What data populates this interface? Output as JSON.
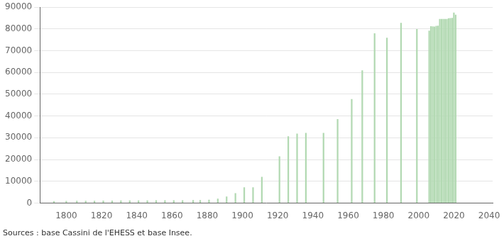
{
  "chart_data": {
    "type": "bar",
    "x": [
      1793,
      1800,
      1806,
      1811,
      1816,
      1821,
      1826,
      1831,
      1836,
      1841,
      1846,
      1851,
      1856,
      1861,
      1866,
      1872,
      1876,
      1881,
      1886,
      1891,
      1896,
      1901,
      1906,
      1911,
      1921,
      1926,
      1931,
      1936,
      1946,
      1954,
      1962,
      1968,
      1975,
      1982,
      1990,
      1999,
      2006,
      2007,
      2008,
      2009,
      2010,
      2011,
      2012,
      2013,
      2014,
      2015,
      2016,
      2017,
      2018,
      2019,
      2020,
      2021
    ],
    "values": [
      900,
      950,
      1000,
      1050,
      1050,
      1100,
      1100,
      1150,
      1150,
      1200,
      1200,
      1250,
      1250,
      1300,
      1300,
      1350,
      1350,
      1500,
      2000,
      3000,
      4500,
      7200,
      7200,
      12000,
      21500,
      30700,
      31900,
      32200,
      32200,
      38600,
      47800,
      61000,
      78000,
      76000,
      82800,
      80000,
      79200,
      81300,
      81200,
      81100,
      81400,
      81500,
      84600,
      84600,
      84600,
      84600,
      84600,
      84900,
      85000,
      85100,
      87500,
      86600
    ],
    "color": "#b2d9b2",
    "xlim": [
      1785,
      2042
    ],
    "xticks": [
      1800,
      1820,
      1840,
      1860,
      1880,
      1900,
      1920,
      1940,
      1960,
      1980,
      2000,
      2020,
      2040
    ],
    "ylim": [
      0,
      90000
    ],
    "yticks": [
      0,
      10000,
      20000,
      30000,
      40000,
      50000,
      60000,
      70000,
      80000,
      90000
    ],
    "grid": true,
    "annotations": [
      "Sources : base Cassini de l'EHESS et base Insee."
    ]
  }
}
